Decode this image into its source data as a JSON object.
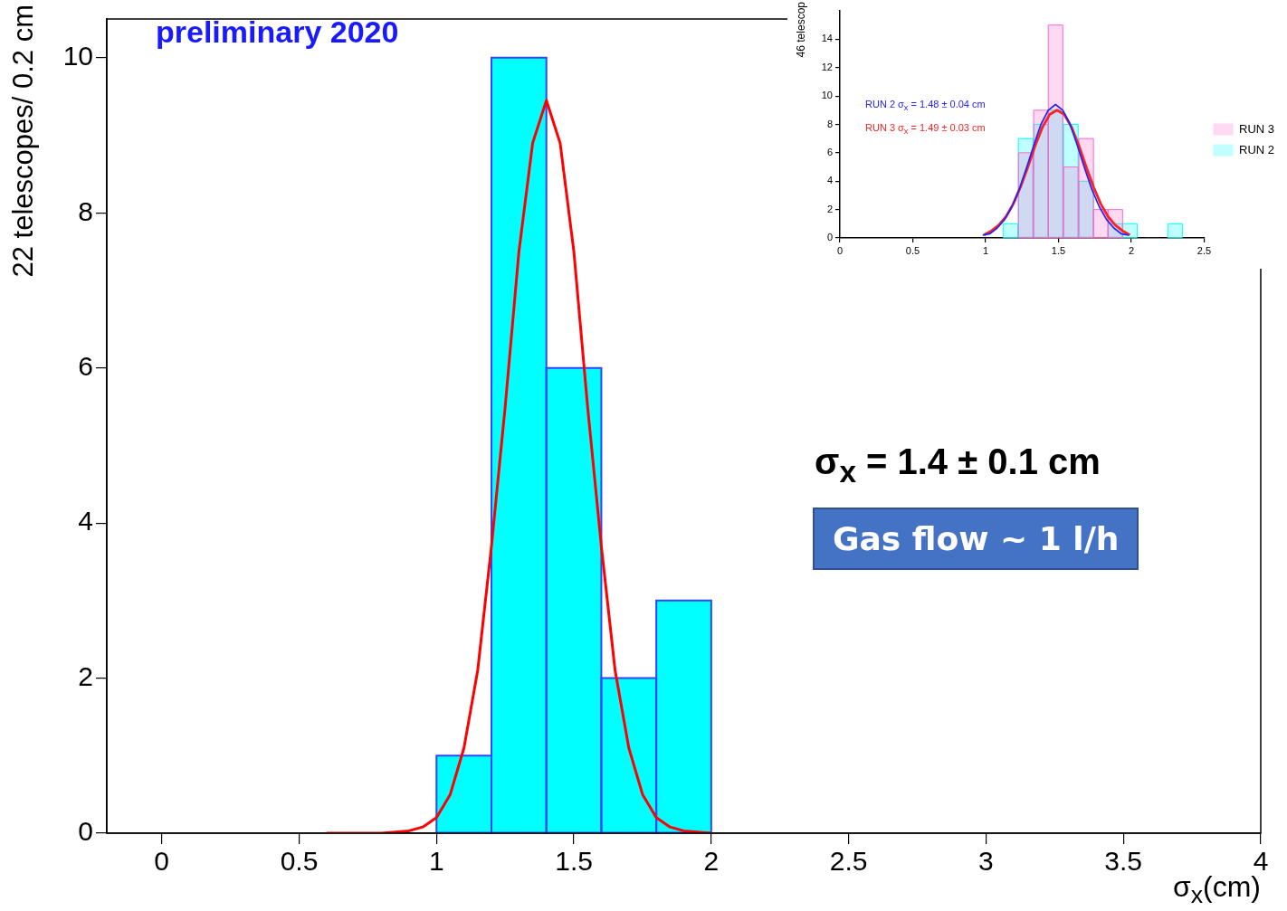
{
  "chart_data": [
    {
      "type": "histogram",
      "xlabel": "σ$_{x}$(cm)",
      "ylabel": "22 telescopes/ 0.2 cm",
      "bins": [
        1,
        1.2,
        1.4,
        1.6,
        1.8,
        2
      ],
      "series": [
        {
          "color": "#00ffff",
          "values": [
            1,
            10,
            6,
            2,
            3
          ]
        },
        {
          "type": "line",
          "color": "#ff0000",
          "x": [
            0.6,
            0.7,
            0.8,
            0.9,
            0.95,
            1,
            1.05,
            1.1,
            1.15,
            1.2,
            1.25,
            1.3,
            1.35,
            1.4,
            1.45,
            1.5,
            1.55,
            1.6,
            1.65,
            1.7,
            1.75,
            1.8,
            1.85,
            1.9,
            2
          ],
          "values": [
            0,
            0,
            0,
            0.03,
            0.08,
            0.2,
            0.5,
            1.1,
            2.1,
            3.7,
            5.5,
            7.5,
            8.9,
            9.45,
            8.9,
            7.5,
            5.5,
            3.7,
            2.1,
            1.1,
            0.5,
            0.2,
            0.08,
            0.03,
            0
          ]
        }
      ],
      "xlim": [
        -0.2,
        4
      ],
      "xticks": [
        0,
        0.5,
        1,
        1.5,
        2,
        2.5,
        3,
        3.5,
        4
      ],
      "ylim": [
        0,
        10.5
      ],
      "yticks": [
        0,
        2,
        4,
        6,
        8,
        10
      ],
      "grid": false,
      "legend": false,
      "marker": "none",
      "annotations": [
        "preliminary 2020",
        "σ$_{x}$ = 1.4 ± 0.1 cm",
        "Gas flow ~ 1 l/h"
      ]
    },
    {
      "type": "histogram",
      "ylabel": "46 telescop",
      "bins": [
        1.12,
        1.22,
        1.33,
        1.43,
        1.53,
        1.64,
        1.74,
        1.84,
        1.94,
        2.04,
        2.25,
        2.35
      ],
      "series": [
        {
          "name": "RUN 3",
          "color": "#ff66cc",
          "values": [
            0,
            6,
            9,
            15,
            5,
            7,
            2,
            2,
            0,
            0,
            0
          ]
        },
        {
          "name": "RUN 2",
          "color": "#00ffff",
          "values": [
            1,
            7,
            8,
            9,
            8,
            4,
            0,
            1,
            1,
            0,
            1
          ]
        },
        {
          "type": "line",
          "color": "#2222ff",
          "x": [
            0.98,
            1.03,
            1.08,
            1.13,
            1.18,
            1.23,
            1.28,
            1.33,
            1.38,
            1.43,
            1.48,
            1.53,
            1.58,
            1.63,
            1.68,
            1.73,
            1.78,
            1.83,
            1.88,
            1.93,
            1.98
          ],
          "values": [
            0.2,
            0.3,
            0.7,
            1.3,
            2.2,
            3.4,
            4.9,
            6.5,
            8.0,
            9.0,
            9.4,
            9.0,
            8.0,
            6.5,
            4.9,
            3.4,
            2.2,
            1.3,
            0.7,
            0.3,
            0.2
          ]
        },
        {
          "type": "line",
          "color": "#ff2222",
          "x": [
            0.99,
            1.04,
            1.09,
            1.14,
            1.19,
            1.24,
            1.29,
            1.34,
            1.39,
            1.44,
            1.49,
            1.54,
            1.59,
            1.64,
            1.69,
            1.74,
            1.79,
            1.84,
            1.89,
            1.94,
            1.99
          ],
          "values": [
            0.2,
            0.5,
            0.9,
            1.5,
            2.4,
            3.6,
            5.0,
            6.5,
            7.8,
            8.7,
            9.0,
            8.7,
            7.8,
            6.5,
            5.0,
            3.6,
            2.4,
            1.5,
            0.9,
            0.5,
            0.2
          ]
        }
      ],
      "xlim": [
        0,
        2.5
      ],
      "xticks": [
        0,
        0.5,
        1,
        1.5,
        2,
        2.5
      ],
      "ylim": [
        0,
        16
      ],
      "yticks": [
        0,
        2,
        4,
        6,
        8,
        10,
        12,
        14
      ],
      "grid": false,
      "legend": "right",
      "marker": "none",
      "annotations": [
        "RUN 2 σ$_{x}$ = 1.48 ± 0.04 cm",
        "RUN 3 σ$_{x}$ = 1.49 ± 0.03 cm"
      ]
    }
  ]
}
